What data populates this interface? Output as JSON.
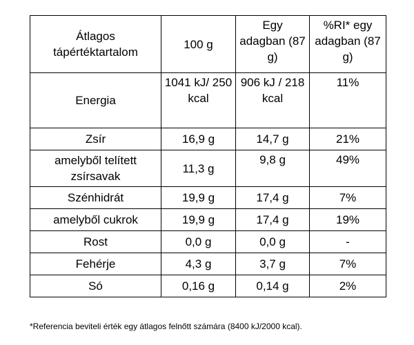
{
  "table": {
    "headers": [
      "Átlagos tápértéktartalom",
      "100 g",
      "Egy adagban (87 g)",
      "%RI* egy adagban (87 g)"
    ],
    "rows": [
      {
        "name": "Energia",
        "per100g": "1041 kJ/ 250 kcal",
        "perServing": "906 kJ / 218 kcal",
        "ri": "11%"
      },
      {
        "name": "Zsír",
        "per100g": "16,9 g",
        "perServing": "14,7 g",
        "ri": "21%"
      },
      {
        "name": "amelyből telített zsírsavak",
        "per100g": "11,3 g",
        "perServing": "9,8 g",
        "ri": "49%"
      },
      {
        "name": "Szénhidrát",
        "per100g": "19,9 g",
        "perServing": "17,4 g",
        "ri": "7%"
      },
      {
        "name": "amelyből cukrok",
        "per100g": "19,9 g",
        "perServing": "17,4 g",
        "ri": "19%"
      },
      {
        "name": "Rost",
        "per100g": "0,0 g",
        "perServing": "0,0 g",
        "ri": "-"
      },
      {
        "name": "Fehérje",
        "per100g": "4,3 g",
        "perServing": "3,7 g",
        "ri": "7%"
      },
      {
        "name": "Só",
        "per100g": "0,16 g",
        "perServing": "0,14 g",
        "ri": "2%"
      }
    ]
  },
  "footnote": "*Referencia beviteli érték egy átlagos felnőtt számára (8400 kJ/2000 kcal)."
}
